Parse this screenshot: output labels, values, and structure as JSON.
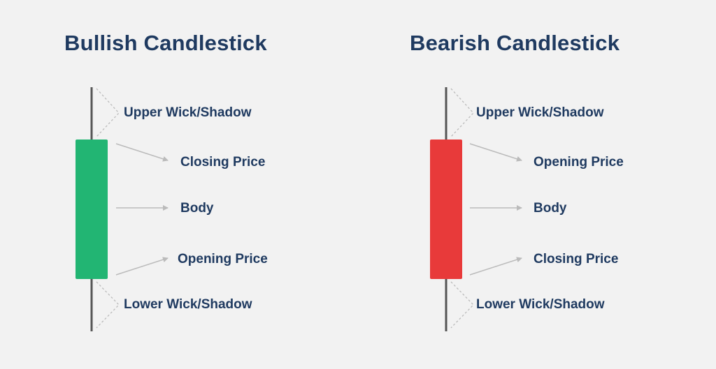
{
  "bullish": {
    "title": "Bullish Candlestick",
    "body_color": "#22b573",
    "labels": {
      "upper_wick": "Upper Wick/Shadow",
      "top_price": "Closing Price",
      "body": "Body",
      "bottom_price": "Opening Price",
      "lower_wick": "Lower Wick/Shadow"
    }
  },
  "bearish": {
    "title": "Bearish Candlestick",
    "body_color": "#e83a3a",
    "labels": {
      "upper_wick": "Upper Wick/Shadow",
      "top_price": "Opening Price",
      "body": "Body",
      "bottom_price": "Closing Price",
      "lower_wick": "Lower Wick/Shadow"
    }
  },
  "colors": {
    "text": "#1f3a60",
    "wick": "#555555",
    "pointer": "#bbbbbb",
    "background": "#f2f2f2"
  }
}
